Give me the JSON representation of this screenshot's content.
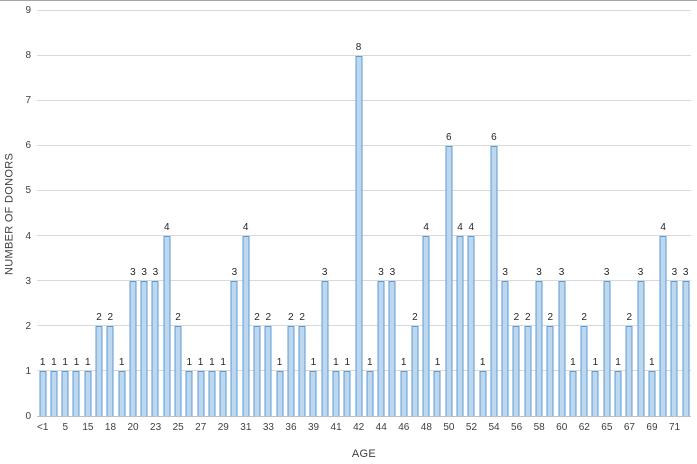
{
  "chart_data": {
    "type": "bar",
    "title": "",
    "xlabel": "AGE",
    "ylabel": "NUMBER OF DONORS",
    "ylim": [
      0,
      9
    ],
    "ytick_step": 1,
    "grid": true,
    "legend": false,
    "data_labels": true,
    "bar_fill": "#bdd7ee",
    "bar_border": "#5b9bd5",
    "categories": [
      "<1",
      "",
      "5",
      "",
      "15",
      "",
      "18",
      "",
      "20",
      "",
      "23",
      "",
      "25",
      "",
      "27",
      "",
      "29",
      "",
      "31",
      "",
      "33",
      "",
      "36",
      "",
      "39",
      "",
      "41",
      "",
      "42",
      "",
      "44",
      "",
      "46",
      "",
      "48",
      "",
      "50",
      "",
      "52",
      "",
      "54",
      "",
      "56",
      "",
      "58",
      "",
      "60",
      "",
      "62",
      "",
      "65",
      "",
      "67",
      "",
      "69",
      "",
      "71",
      ""
    ],
    "values": [
      1,
      1,
      1,
      1,
      1,
      2,
      2,
      1,
      3,
      3,
      3,
      4,
      2,
      1,
      1,
      1,
      1,
      3,
      4,
      2,
      2,
      1,
      2,
      2,
      1,
      3,
      1,
      1,
      8,
      1,
      3,
      3,
      1,
      2,
      4,
      1,
      6,
      4,
      4,
      1,
      6,
      3,
      2,
      2,
      3,
      2,
      3,
      1,
      2,
      1,
      3,
      1,
      2,
      3,
      1,
      4,
      3,
      3
    ]
  }
}
